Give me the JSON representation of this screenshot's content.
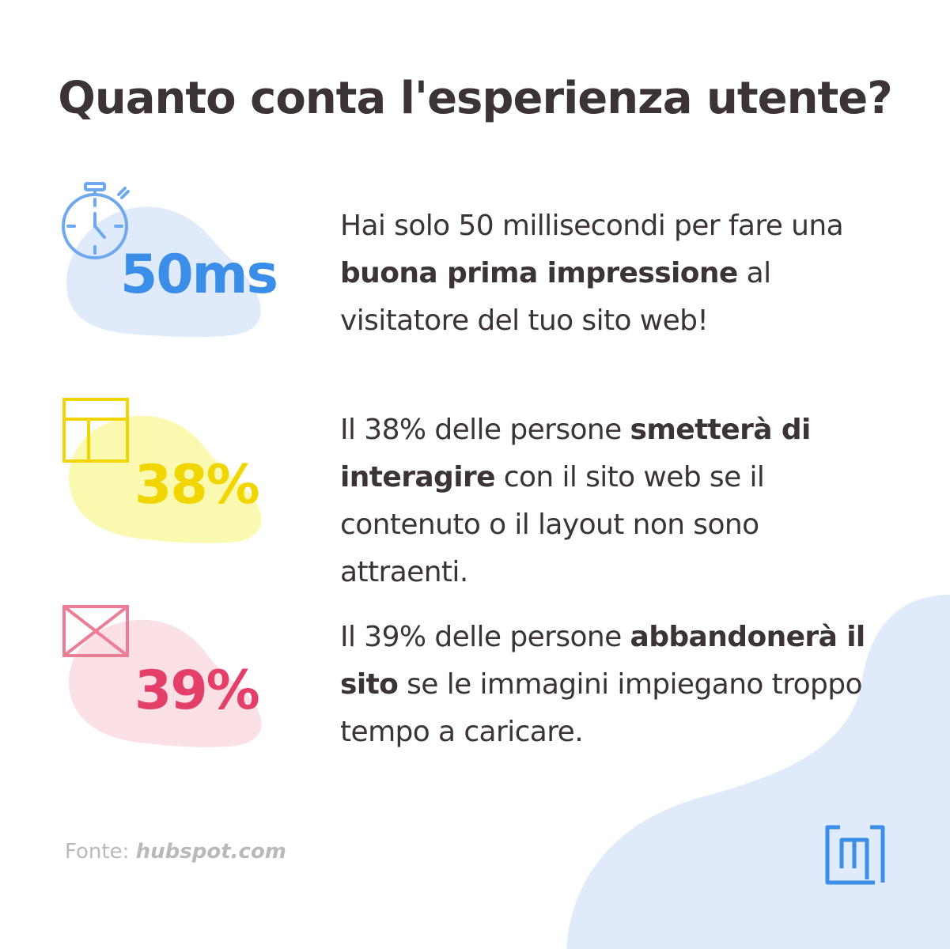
{
  "title": "Quanto conta l'esperienza utente?",
  "colors": {
    "blue": "#3b8ee8",
    "blue_light": "#dfeafb",
    "yellow": "#f1d500",
    "yellow_light": "#fbf8b0",
    "pink": "#e33f68",
    "pink_light": "#fbe0e6",
    "text": "#3b3337",
    "muted": "#b9b9b9"
  },
  "stats": [
    {
      "value": "50ms",
      "icon": "stopwatch-icon",
      "text_before": "Hai solo 50 millisecondi per fare una ",
      "text_bold": "buona prima impressione",
      "text_after": " al visitatore del tuo sito web!"
    },
    {
      "value": "38%",
      "icon": "layout-icon",
      "text_before": "Il 38% delle persone ",
      "text_bold": "smetterà di interagire",
      "text_after": " con il sito web se il contenuto o il layout non sono attraenti."
    },
    {
      "value": "39%",
      "icon": "image-placeholder-icon",
      "text_before": "Il 39% delle persone ",
      "text_bold": "abbandonerà il sito",
      "text_after": " se le immagini impiegano troppo tempo a caricare."
    }
  ],
  "source": {
    "label": "Fonte:",
    "site": "hubspot.com"
  },
  "logo_icon": "brand-logo-icon"
}
